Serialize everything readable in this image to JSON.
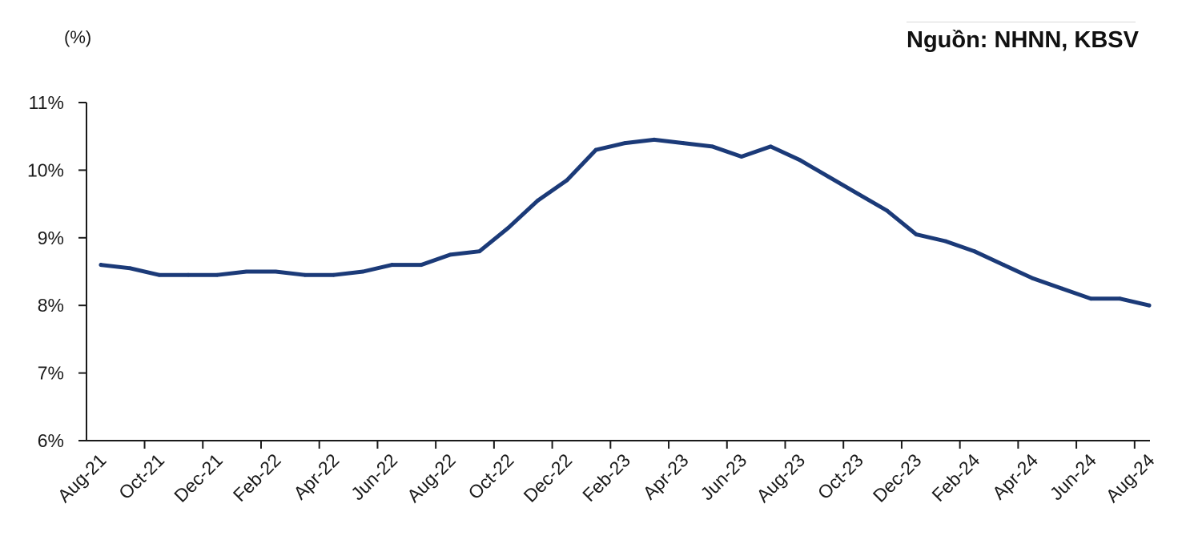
{
  "source": "Nguồn: NHNN, KBSV",
  "unit_label": "(%)",
  "colors": {
    "line": "#1b3a78",
    "axis": "#1a1a1a"
  },
  "chart_data": {
    "type": "line",
    "title": "",
    "xlabel": "",
    "ylabel": "(%)",
    "ylim": [
      6,
      11
    ],
    "yticks": [
      "6%",
      "7%",
      "8%",
      "9%",
      "10%",
      "11%"
    ],
    "grid": false,
    "x": [
      "Aug-21",
      "Sep-21",
      "Oct-21",
      "Nov-21",
      "Dec-21",
      "Jan-22",
      "Feb-22",
      "Mar-22",
      "Apr-22",
      "May-22",
      "Jun-22",
      "Jul-22",
      "Aug-22",
      "Sep-22",
      "Oct-22",
      "Nov-22",
      "Dec-22",
      "Jan-23",
      "Feb-23",
      "Mar-23",
      "Apr-23",
      "May-23",
      "Jun-23",
      "Jul-23",
      "Aug-23",
      "Sep-23",
      "Oct-23",
      "Nov-23",
      "Dec-23",
      "Jan-24",
      "Feb-24",
      "Mar-24",
      "Apr-24",
      "May-24",
      "Jun-24",
      "Jul-24",
      "Aug-24"
    ],
    "x_tick_labels": [
      "Aug-21",
      "Oct-21",
      "Dec-21",
      "Feb-22",
      "Apr-22",
      "Jun-22",
      "Aug-22",
      "Oct-22",
      "Dec-22",
      "Feb-23",
      "Apr-23",
      "Jun-23",
      "Aug-23",
      "Oct-23",
      "Dec-23",
      "Feb-24",
      "Apr-24",
      "Jun-24",
      "Aug-24"
    ],
    "series": [
      {
        "values": [
          8.6,
          8.55,
          8.45,
          8.45,
          8.45,
          8.5,
          8.5,
          8.45,
          8.45,
          8.5,
          8.6,
          8.6,
          8.75,
          8.8,
          9.15,
          9.55,
          9.85,
          10.3,
          10.4,
          10.45,
          10.4,
          10.35,
          10.2,
          10.35,
          10.15,
          9.9,
          9.65,
          9.4,
          9.05,
          8.95,
          8.8,
          8.6,
          8.4,
          8.25,
          8.1,
          8.1,
          8.0
        ]
      }
    ]
  }
}
